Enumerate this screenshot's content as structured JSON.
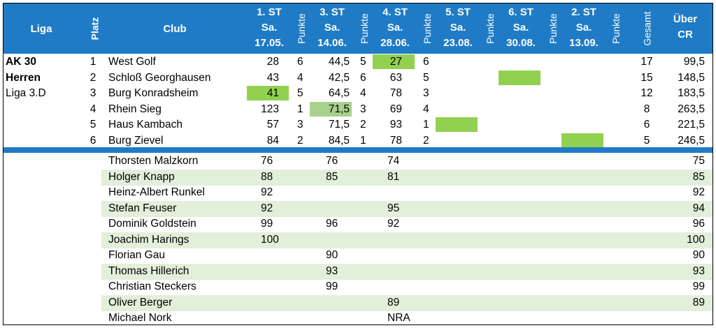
{
  "header": {
    "liga": "Liga",
    "platz": "Platz",
    "club": "Club",
    "rounds": [
      {
        "l1": "1. ST",
        "l2": "Sa.",
        "l3": "17.05."
      },
      {
        "l1": "3. ST",
        "l2": "Sa.",
        "l3": "14.06."
      },
      {
        "l1": "4. ST",
        "l2": "Sa.",
        "l3": "28.06."
      },
      {
        "l1": "5. ST",
        "l2": "Sa.",
        "l3": "23.08."
      },
      {
        "l1": "6. ST",
        "l2": "Sa.",
        "l3": "30.08."
      },
      {
        "l1": "2. ST",
        "l2": "Sa.",
        "l3": "13.09."
      }
    ],
    "punkte": "Punkte",
    "gesamt": "Gesamt",
    "ueber_l1": "Über",
    "ueber_l2": "CR"
  },
  "liga_lines": [
    "AK 30",
    "Herren",
    "Liga 3.D"
  ],
  "standings": [
    {
      "platz": "1",
      "club": "West Golf",
      "s1": "28",
      "p1": "6",
      "s3": "44,5",
      "p3": "5",
      "s4": "27",
      "p4": "6",
      "gesamt": "17",
      "cr": "99,5"
    },
    {
      "platz": "2",
      "club": "Schloß Georghausen",
      "s1": "43",
      "p1": "4",
      "s3": "42,5",
      "p3": "6",
      "s4": "63",
      "p4": "5",
      "gesamt": "15",
      "cr": "148,5"
    },
    {
      "platz": "3",
      "club": "Burg Konradsheim",
      "s1": "41",
      "p1": "5",
      "s3": "64,5",
      "p3": "4",
      "s4": "78",
      "p4": "3",
      "gesamt": "12",
      "cr": "183,5"
    },
    {
      "platz": "4",
      "club": "Rhein Sieg",
      "s1": "123",
      "p1": "1",
      "s3": "71,5",
      "p3": "3",
      "s4": "69",
      "p4": "4",
      "gesamt": "8",
      "cr": "263,5"
    },
    {
      "platz": "5",
      "club": "Haus Kambach",
      "s1": "57",
      "p1": "3",
      "s3": "71,5",
      "p3": "2",
      "s4": "93",
      "p4": "1",
      "gesamt": "6",
      "cr": "221,5"
    },
    {
      "platz": "6",
      "club": "Burg Zievel",
      "s1": "84",
      "p1": "2",
      "s3": "84,5",
      "p3": "1",
      "s4": "78",
      "p4": "2",
      "gesamt": "5",
      "cr": "246,5"
    }
  ],
  "players": [
    {
      "name": "Thorsten Malzkorn",
      "s1": "76",
      "s3": "76",
      "s4": "74",
      "cr": "75"
    },
    {
      "name": "Holger Knapp",
      "s1": "88",
      "s3": "85",
      "s4": "81",
      "cr": "85"
    },
    {
      "name": "Heinz-Albert Runkel",
      "s1": "92",
      "s3": "",
      "s4": "",
      "cr": "92"
    },
    {
      "name": "Stefan Feuser",
      "s1": "92",
      "s3": "",
      "s4": "95",
      "cr": "94"
    },
    {
      "name": "Dominik Goldstein",
      "s1": "99",
      "s3": "96",
      "s4": "92",
      "cr": "96"
    },
    {
      "name": "Joachim Harings",
      "s1": "100",
      "s3": "",
      "s4": "",
      "cr": "100"
    },
    {
      "name": "Florian Gau",
      "s1": "",
      "s3": "90",
      "s4": "",
      "cr": "90"
    },
    {
      "name": "Thomas Hillerich",
      "s1": "",
      "s3": "93",
      "s4": "",
      "cr": "93"
    },
    {
      "name": "Christian Steckers",
      "s1": "",
      "s3": "99",
      "s4": "",
      "cr": "99"
    },
    {
      "name": "Oliver Berger",
      "s1": "",
      "s3": "",
      "s4": "89",
      "cr": "89"
    },
    {
      "name": "Michael Nork",
      "s1": "",
      "s3": "",
      "s4": "NRA",
      "cr": ""
    }
  ],
  "colors": {
    "header_bg": "#1f7bc6",
    "header_text": "#ffffff",
    "highlight": "#92d050",
    "highlight_soft": "#a9d18e",
    "band": "#e2efda"
  }
}
